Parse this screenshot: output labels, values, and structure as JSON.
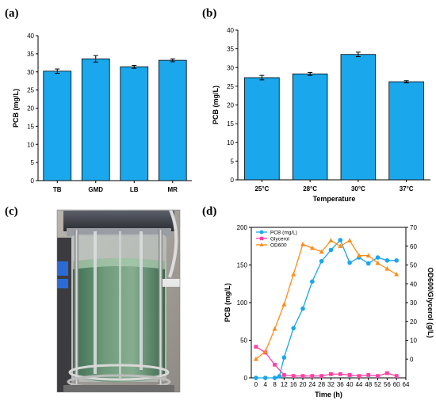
{
  "panels": {
    "a": "(a)",
    "b": "(b)",
    "c": "(c)",
    "d": "(d)"
  },
  "colors": {
    "bar": "#1aa7ec",
    "pcb": "#1aa7ec",
    "glycerol": "#ff3fa4",
    "od600": "#ff8c1a"
  },
  "photo": {
    "kind": "photograph of a glass fermenter vessel filled with green culture"
  },
  "chart_data": [
    {
      "id": "a",
      "type": "bar",
      "categories": [
        "TB",
        "GMD",
        "LB",
        "MR"
      ],
      "values": [
        30.2,
        33.6,
        31.4,
        33.2
      ],
      "errors": [
        0.6,
        0.9,
        0.4,
        0.4
      ],
      "ylabel": "PCB (mg/L)",
      "xlabel": "",
      "ylim": [
        0,
        40
      ],
      "yticks": [
        0,
        5,
        10,
        15,
        20,
        25,
        30,
        35,
        40
      ]
    },
    {
      "id": "b",
      "type": "bar",
      "categories": [
        "25°C",
        "28°C",
        "30°C",
        "37°C"
      ],
      "values": [
        27.3,
        28.3,
        33.5,
        26.2
      ],
      "errors": [
        0.6,
        0.4,
        0.6,
        0.3
      ],
      "ylabel": "PCB (mg/L)",
      "xlabel": "Temperature",
      "ylim": [
        0,
        40
      ],
      "yticks": [
        0,
        5,
        10,
        15,
        20,
        25,
        30,
        35,
        40
      ]
    },
    {
      "id": "d",
      "type": "line",
      "xlabel": "Time (h)",
      "ylabel": "PCB (mg/L)",
      "y2label": "OD600/Glycerol (g/L)",
      "xlim": [
        -2,
        64
      ],
      "ylim": [
        0,
        200
      ],
      "y2lim": [
        -10,
        70
      ],
      "xticks": [
        0,
        4,
        8,
        12,
        16,
        20,
        24,
        28,
        32,
        36,
        40,
        44,
        48,
        52,
        56,
        60,
        64
      ],
      "yticks": [
        0,
        50,
        100,
        150,
        200
      ],
      "y2ticks": [
        0,
        10,
        20,
        30,
        40,
        50,
        60,
        70
      ],
      "legend_position": "top-left",
      "series": [
        {
          "name": "PCB (mg/L)",
          "axis": "left",
          "marker": "circle",
          "x": [
            0,
            4,
            8,
            10,
            12,
            16,
            20,
            24,
            28,
            32,
            36,
            40,
            44,
            48,
            52,
            56,
            60
          ],
          "y": [
            0,
            0,
            0,
            2,
            27,
            66,
            92,
            128,
            155,
            170,
            183,
            153,
            160,
            152,
            160,
            156,
            156
          ]
        },
        {
          "name": "Glycerol",
          "axis": "right",
          "marker": "square",
          "x": [
            0,
            4,
            8,
            12,
            16,
            20,
            24,
            28,
            32,
            36,
            40,
            44,
            48,
            52,
            56,
            60
          ],
          "y": [
            6.5,
            3.5,
            -3,
            -8.5,
            -9,
            -9,
            -9,
            -9,
            -8,
            -8,
            -8.5,
            -9,
            -8.5,
            -9,
            -7.5,
            -9
          ]
        },
        {
          "name": "OD600",
          "axis": "right",
          "marker": "triangle",
          "x": [
            0,
            4,
            8,
            12,
            16,
            20,
            24,
            28,
            32,
            36,
            40,
            44,
            48,
            52,
            56,
            60
          ],
          "y": [
            0,
            4,
            16,
            29,
            45,
            61,
            59,
            57,
            63,
            60,
            63,
            55,
            55,
            51,
            48,
            45
          ]
        }
      ]
    }
  ]
}
